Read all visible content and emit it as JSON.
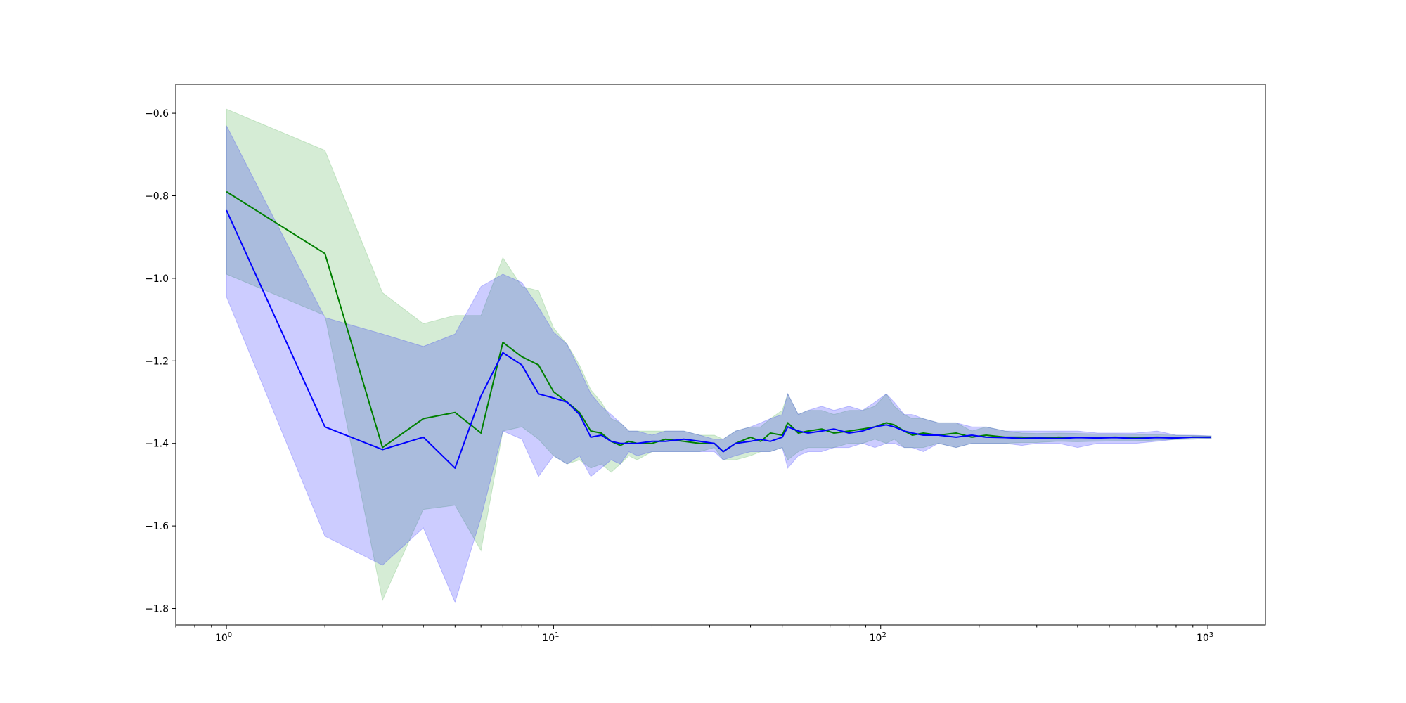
{
  "chart_data": {
    "type": "line",
    "title": "",
    "xlabel": "",
    "ylabel": "",
    "xscale": "log",
    "xlim": [
      0.7,
      1500
    ],
    "ylim": [
      -1.84,
      -0.53
    ],
    "grid": false,
    "legend": "none",
    "xticks": [
      {
        "value": 1,
        "base": "10",
        "exp": "0"
      },
      {
        "value": 10,
        "base": "10",
        "exp": "1"
      },
      {
        "value": 100,
        "base": "10",
        "exp": "2"
      },
      {
        "value": 1000,
        "base": "10",
        "exp": "3"
      }
    ],
    "yticks": [
      {
        "value": -0.6,
        "label": "−0.6"
      },
      {
        "value": -0.8,
        "label": "−0.8"
      },
      {
        "value": -1.0,
        "label": "−1.0"
      },
      {
        "value": -1.2,
        "label": "−1.2"
      },
      {
        "value": -1.4,
        "label": "−1.4"
      },
      {
        "value": -1.6,
        "label": "−1.6"
      },
      {
        "value": -1.8,
        "label": "−1.8"
      }
    ],
    "series": [
      {
        "color": "#008000",
        "band_color": "#2ca02c",
        "x": [
          1,
          2,
          3,
          4,
          5,
          6,
          7,
          8,
          9,
          10,
          11,
          12,
          13,
          14,
          15,
          16,
          17,
          18,
          20,
          22,
          25,
          28,
          31,
          33,
          36,
          40,
          43,
          46,
          50,
          52,
          56,
          60,
          66,
          72,
          80,
          88,
          96,
          104,
          110,
          118,
          125,
          135,
          150,
          170,
          190,
          210,
          240,
          270,
          300,
          350,
          400,
          460,
          520,
          600,
          700,
          800,
          900,
          1024
        ],
        "y": [
          -0.79,
          -0.94,
          -1.41,
          -1.34,
          -1.325,
          -1.375,
          -1.155,
          -1.19,
          -1.21,
          -1.275,
          -1.3,
          -1.325,
          -1.37,
          -1.375,
          -1.395,
          -1.405,
          -1.395,
          -1.4,
          -1.4,
          -1.39,
          -1.395,
          -1.4,
          -1.4,
          -1.42,
          -1.4,
          -1.385,
          -1.395,
          -1.375,
          -1.38,
          -1.35,
          -1.375,
          -1.37,
          -1.365,
          -1.375,
          -1.37,
          -1.365,
          -1.36,
          -1.35,
          -1.355,
          -1.37,
          -1.38,
          -1.375,
          -1.38,
          -1.375,
          -1.385,
          -1.38,
          -1.385,
          -1.385,
          -1.387,
          -1.385,
          -1.386,
          -1.386,
          -1.385,
          -1.386,
          -1.385,
          -1.386,
          -1.385,
          -1.385
        ],
        "lower": [
          -0.99,
          -1.09,
          -1.78,
          -1.56,
          -1.55,
          -1.66,
          -1.37,
          -1.36,
          -1.39,
          -1.43,
          -1.45,
          -1.44,
          -1.46,
          -1.45,
          -1.47,
          -1.45,
          -1.43,
          -1.44,
          -1.42,
          -1.42,
          -1.42,
          -1.42,
          -1.41,
          -1.44,
          -1.44,
          -1.43,
          -1.42,
          -1.42,
          -1.41,
          -1.44,
          -1.42,
          -1.41,
          -1.41,
          -1.41,
          -1.4,
          -1.4,
          -1.39,
          -1.4,
          -1.39,
          -1.41,
          -1.41,
          -1.41,
          -1.4,
          -1.41,
          -1.4,
          -1.4,
          -1.4,
          -1.398,
          -1.398,
          -1.395,
          -1.396,
          -1.395,
          -1.394,
          -1.394,
          -1.392,
          -1.391,
          -1.39,
          -1.388
        ],
        "upper": [
          -0.59,
          -0.69,
          -1.035,
          -1.11,
          -1.09,
          -1.09,
          -0.95,
          -1.02,
          -1.03,
          -1.12,
          -1.16,
          -1.21,
          -1.27,
          -1.3,
          -1.34,
          -1.35,
          -1.37,
          -1.37,
          -1.37,
          -1.37,
          -1.37,
          -1.38,
          -1.38,
          -1.39,
          -1.37,
          -1.36,
          -1.36,
          -1.34,
          -1.32,
          -1.28,
          -1.33,
          -1.32,
          -1.32,
          -1.33,
          -1.32,
          -1.32,
          -1.31,
          -1.28,
          -1.31,
          -1.33,
          -1.34,
          -1.34,
          -1.35,
          -1.35,
          -1.37,
          -1.36,
          -1.37,
          -1.375,
          -1.376,
          -1.375,
          -1.376,
          -1.377,
          -1.377,
          -1.378,
          -1.379,
          -1.38,
          -1.381,
          -1.382
        ]
      },
      {
        "color": "#0000ff",
        "band_color": "#0000ff",
        "x": [
          1,
          2,
          3,
          4,
          5,
          6,
          7,
          8,
          9,
          10,
          11,
          12,
          13,
          14,
          15,
          16,
          17,
          18,
          20,
          22,
          25,
          28,
          31,
          33,
          36,
          40,
          43,
          46,
          50,
          52,
          56,
          60,
          66,
          72,
          80,
          88,
          96,
          104,
          110,
          118,
          125,
          135,
          150,
          170,
          190,
          210,
          240,
          270,
          300,
          350,
          400,
          460,
          520,
          600,
          700,
          800,
          900,
          1024
        ],
        "y": [
          -0.835,
          -1.36,
          -1.415,
          -1.385,
          -1.46,
          -1.285,
          -1.18,
          -1.21,
          -1.28,
          -1.29,
          -1.3,
          -1.33,
          -1.385,
          -1.38,
          -1.395,
          -1.4,
          -1.4,
          -1.4,
          -1.395,
          -1.395,
          -1.39,
          -1.395,
          -1.4,
          -1.42,
          -1.4,
          -1.395,
          -1.39,
          -1.395,
          -1.385,
          -1.36,
          -1.37,
          -1.375,
          -1.37,
          -1.365,
          -1.375,
          -1.37,
          -1.36,
          -1.355,
          -1.36,
          -1.37,
          -1.375,
          -1.38,
          -1.38,
          -1.385,
          -1.38,
          -1.385,
          -1.386,
          -1.388,
          -1.387,
          -1.388,
          -1.386,
          -1.387,
          -1.386,
          -1.388,
          -1.386,
          -1.387,
          -1.385,
          -1.385
        ],
        "lower": [
          -1.045,
          -1.625,
          -1.695,
          -1.605,
          -1.785,
          -1.58,
          -1.37,
          -1.39,
          -1.48,
          -1.43,
          -1.45,
          -1.43,
          -1.48,
          -1.46,
          -1.44,
          -1.45,
          -1.42,
          -1.43,
          -1.42,
          -1.42,
          -1.42,
          -1.42,
          -1.42,
          -1.44,
          -1.43,
          -1.42,
          -1.42,
          -1.42,
          -1.41,
          -1.46,
          -1.43,
          -1.42,
          -1.42,
          -1.41,
          -1.41,
          -1.4,
          -1.41,
          -1.4,
          -1.4,
          -1.41,
          -1.41,
          -1.42,
          -1.4,
          -1.41,
          -1.4,
          -1.4,
          -1.4,
          -1.405,
          -1.4,
          -1.4,
          -1.41,
          -1.4,
          -1.4,
          -1.4,
          -1.395,
          -1.39,
          -1.39,
          -1.388
        ],
        "upper": [
          -0.63,
          -1.095,
          -1.135,
          -1.165,
          -1.135,
          -1.02,
          -0.99,
          -1.01,
          -1.07,
          -1.13,
          -1.16,
          -1.22,
          -1.28,
          -1.31,
          -1.33,
          -1.35,
          -1.37,
          -1.37,
          -1.38,
          -1.37,
          -1.37,
          -1.38,
          -1.39,
          -1.39,
          -1.37,
          -1.36,
          -1.35,
          -1.34,
          -1.33,
          -1.28,
          -1.33,
          -1.32,
          -1.31,
          -1.32,
          -1.31,
          -1.32,
          -1.3,
          -1.28,
          -1.3,
          -1.33,
          -1.33,
          -1.34,
          -1.35,
          -1.35,
          -1.36,
          -1.36,
          -1.37,
          -1.37,
          -1.37,
          -1.37,
          -1.37,
          -1.375,
          -1.375,
          -1.375,
          -1.37,
          -1.38,
          -1.38,
          -1.382
        ]
      }
    ]
  }
}
